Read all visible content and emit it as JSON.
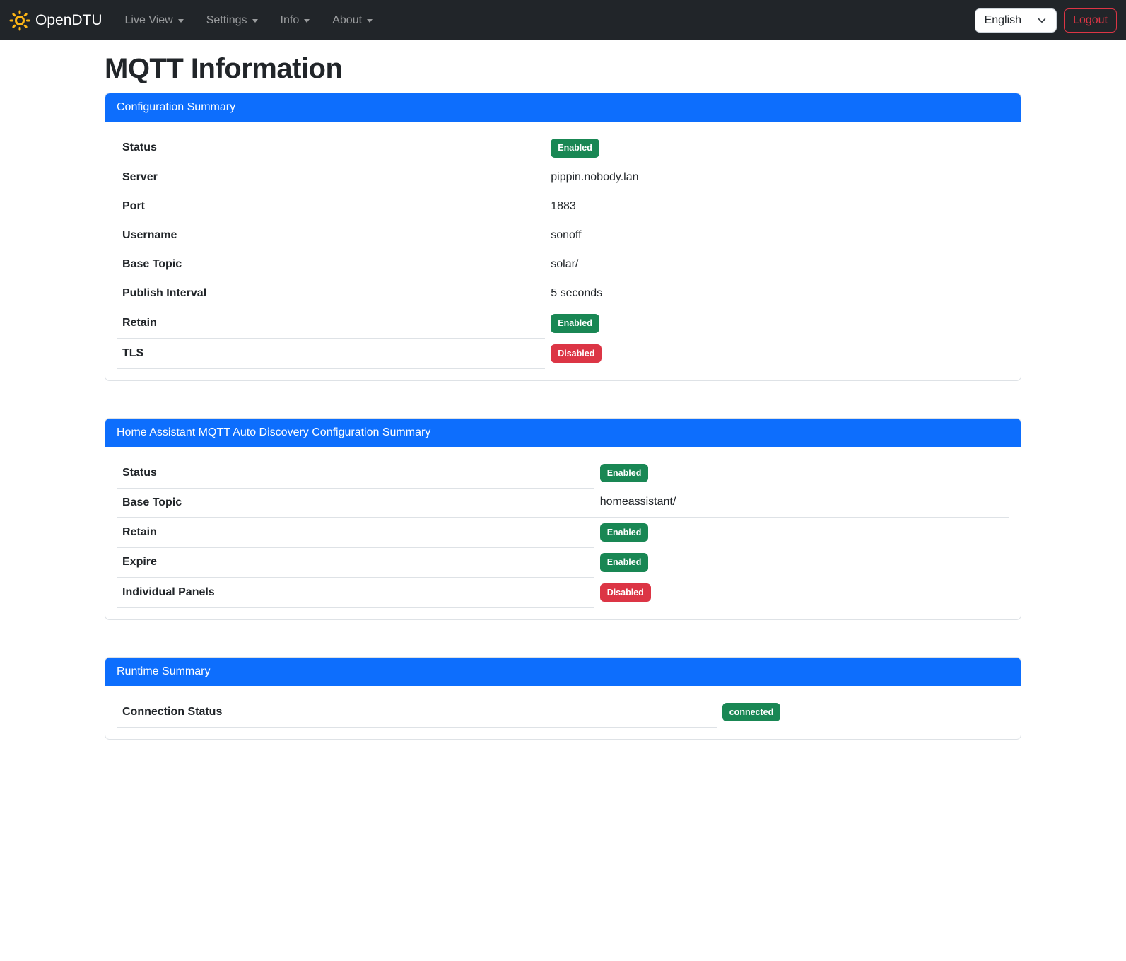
{
  "navbar": {
    "brand": "OpenDTU",
    "items": [
      {
        "label": "Live View",
        "has_caret": false
      },
      {
        "label": "Settings",
        "has_caret": true
      },
      {
        "label": "Info",
        "has_caret": true
      },
      {
        "label": "About",
        "has_caret": false
      }
    ],
    "language_select": {
      "value": "English"
    },
    "logout_label": "Logout"
  },
  "page": {
    "title": "MQTT Information"
  },
  "colors": {
    "navbar_bg": "#212529",
    "header_accent": "#0d6efd",
    "badge_success": "#198754",
    "badge_danger": "#dc3545",
    "logout_red": "#dc3545",
    "logo_gold": "#fdb515"
  },
  "cards": [
    {
      "title": "Configuration Summary",
      "rows": [
        {
          "label": "Status",
          "type": "badge",
          "value": "Enabled",
          "variant": "success"
        },
        {
          "label": "Server",
          "type": "text",
          "value": "pippin.nobody.lan"
        },
        {
          "label": "Port",
          "type": "text",
          "value": "1883"
        },
        {
          "label": "Username",
          "type": "text",
          "value": "sonoff"
        },
        {
          "label": "Base Topic",
          "type": "text",
          "value": "solar/"
        },
        {
          "label": "Publish Interval",
          "type": "text",
          "value": "5 seconds"
        },
        {
          "label": "Retain",
          "type": "badge",
          "value": "Enabled",
          "variant": "success"
        },
        {
          "label": "TLS",
          "type": "badge",
          "value": "Disabled",
          "variant": "danger"
        }
      ]
    },
    {
      "title": "Home Assistant MQTT Auto Discovery Configuration Summary",
      "rows": [
        {
          "label": "Status",
          "type": "badge",
          "value": "Enabled",
          "variant": "success"
        },
        {
          "label": "Base Topic",
          "type": "text",
          "value": "homeassistant/"
        },
        {
          "label": "Retain",
          "type": "badge",
          "value": "Enabled",
          "variant": "success"
        },
        {
          "label": "Expire",
          "type": "badge",
          "value": "Enabled",
          "variant": "success"
        },
        {
          "label": "Individual Panels",
          "type": "badge",
          "value": "Disabled",
          "variant": "danger"
        }
      ]
    },
    {
      "title": "Runtime Summary",
      "rows": [
        {
          "label": "Connection Status",
          "type": "badge",
          "value": "connected",
          "variant": "success"
        }
      ]
    }
  ]
}
